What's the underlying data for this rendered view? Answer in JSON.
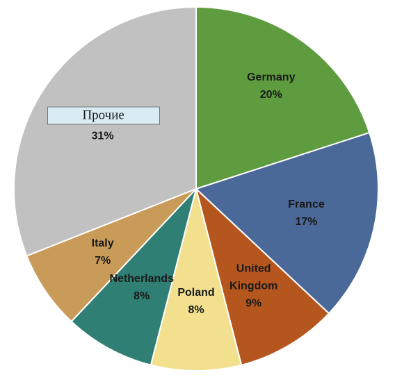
{
  "chart_data": {
    "type": "pie",
    "categories": [
      "Germany",
      "France",
      "United Kingdom",
      "Poland",
      "Netherlands",
      "Italy",
      "Прочие"
    ],
    "values": [
      20,
      17,
      9,
      8,
      8,
      7,
      31
    ],
    "value_labels": [
      "20%",
      "17%",
      "9%",
      "8%",
      "8%",
      "7%",
      "31%"
    ],
    "colors": [
      "#5e9c3f",
      "#4a6898",
      "#b5561f",
      "#f2e08e",
      "#2f7f74",
      "#c99b59",
      "#c1c1c1"
    ]
  }
}
